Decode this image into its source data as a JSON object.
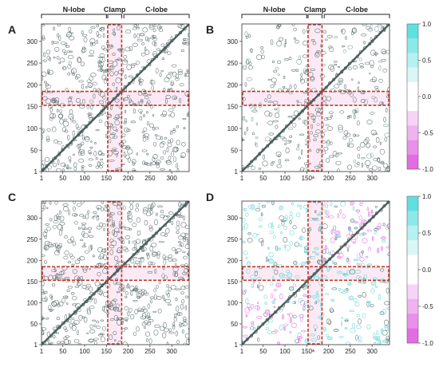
{
  "figure": {
    "panels": [
      {
        "label": "A"
      },
      {
        "label": "B"
      },
      {
        "label": "C"
      },
      {
        "label": "D"
      }
    ],
    "regions": [
      "N-lobe",
      "Clamp",
      "C-lobe"
    ],
    "axis_ticks": [
      "1",
      "50",
      "100",
      "150",
      "200",
      "250",
      "300"
    ],
    "colorbar_ticks": [
      "1.0",
      "0.5",
      "0.0",
      "-0.5",
      "-1.0"
    ],
    "colors": {
      "contour_gray": "#5a6b6b",
      "positive": "#5fd6d6",
      "negative": "#e66ee6",
      "highlight_box": "#c0392b",
      "highlight_fill": "#f7d9ec"
    }
  },
  "chart_data": [
    {
      "type": "heatmap",
      "panel": "A",
      "x_range": [
        1,
        340
      ],
      "y_range": [
        1,
        340
      ],
      "tick_labels": [
        "1",
        "50",
        "100",
        "150",
        "200",
        "250",
        "300"
      ],
      "regions": [
        "N-lobe",
        "Clamp",
        "C-lobe"
      ]
    },
    {
      "type": "heatmap",
      "panel": "B",
      "x_range": [
        1,
        340
      ],
      "y_range": [
        1,
        340
      ],
      "tick_labels": [
        "1",
        "50",
        "100",
        "150",
        "200",
        "250",
        "300"
      ],
      "regions": [
        "N-lobe",
        "Clamp",
        "C-lobe"
      ],
      "colorbar": {
        "min": -1.0,
        "max": 1.0,
        "ticks": [
          1.0,
          0.5,
          0.0,
          -0.5,
          -1.0
        ]
      }
    },
    {
      "type": "heatmap",
      "panel": "C",
      "x_range": [
        1,
        340
      ],
      "y_range": [
        1,
        340
      ],
      "tick_labels": [
        "1",
        "50",
        "100",
        "150",
        "200",
        "250",
        "300"
      ]
    },
    {
      "type": "heatmap",
      "panel": "D",
      "x_range": [
        1,
        340
      ],
      "y_range": [
        1,
        340
      ],
      "tick_labels": [
        "1",
        "50",
        "100",
        "150",
        "200",
        "250",
        "300"
      ],
      "colorbar": {
        "min": -1.0,
        "max": 1.0,
        "ticks": [
          1.0,
          0.5,
          0.0,
          -0.5,
          -1.0
        ]
      }
    }
  ]
}
